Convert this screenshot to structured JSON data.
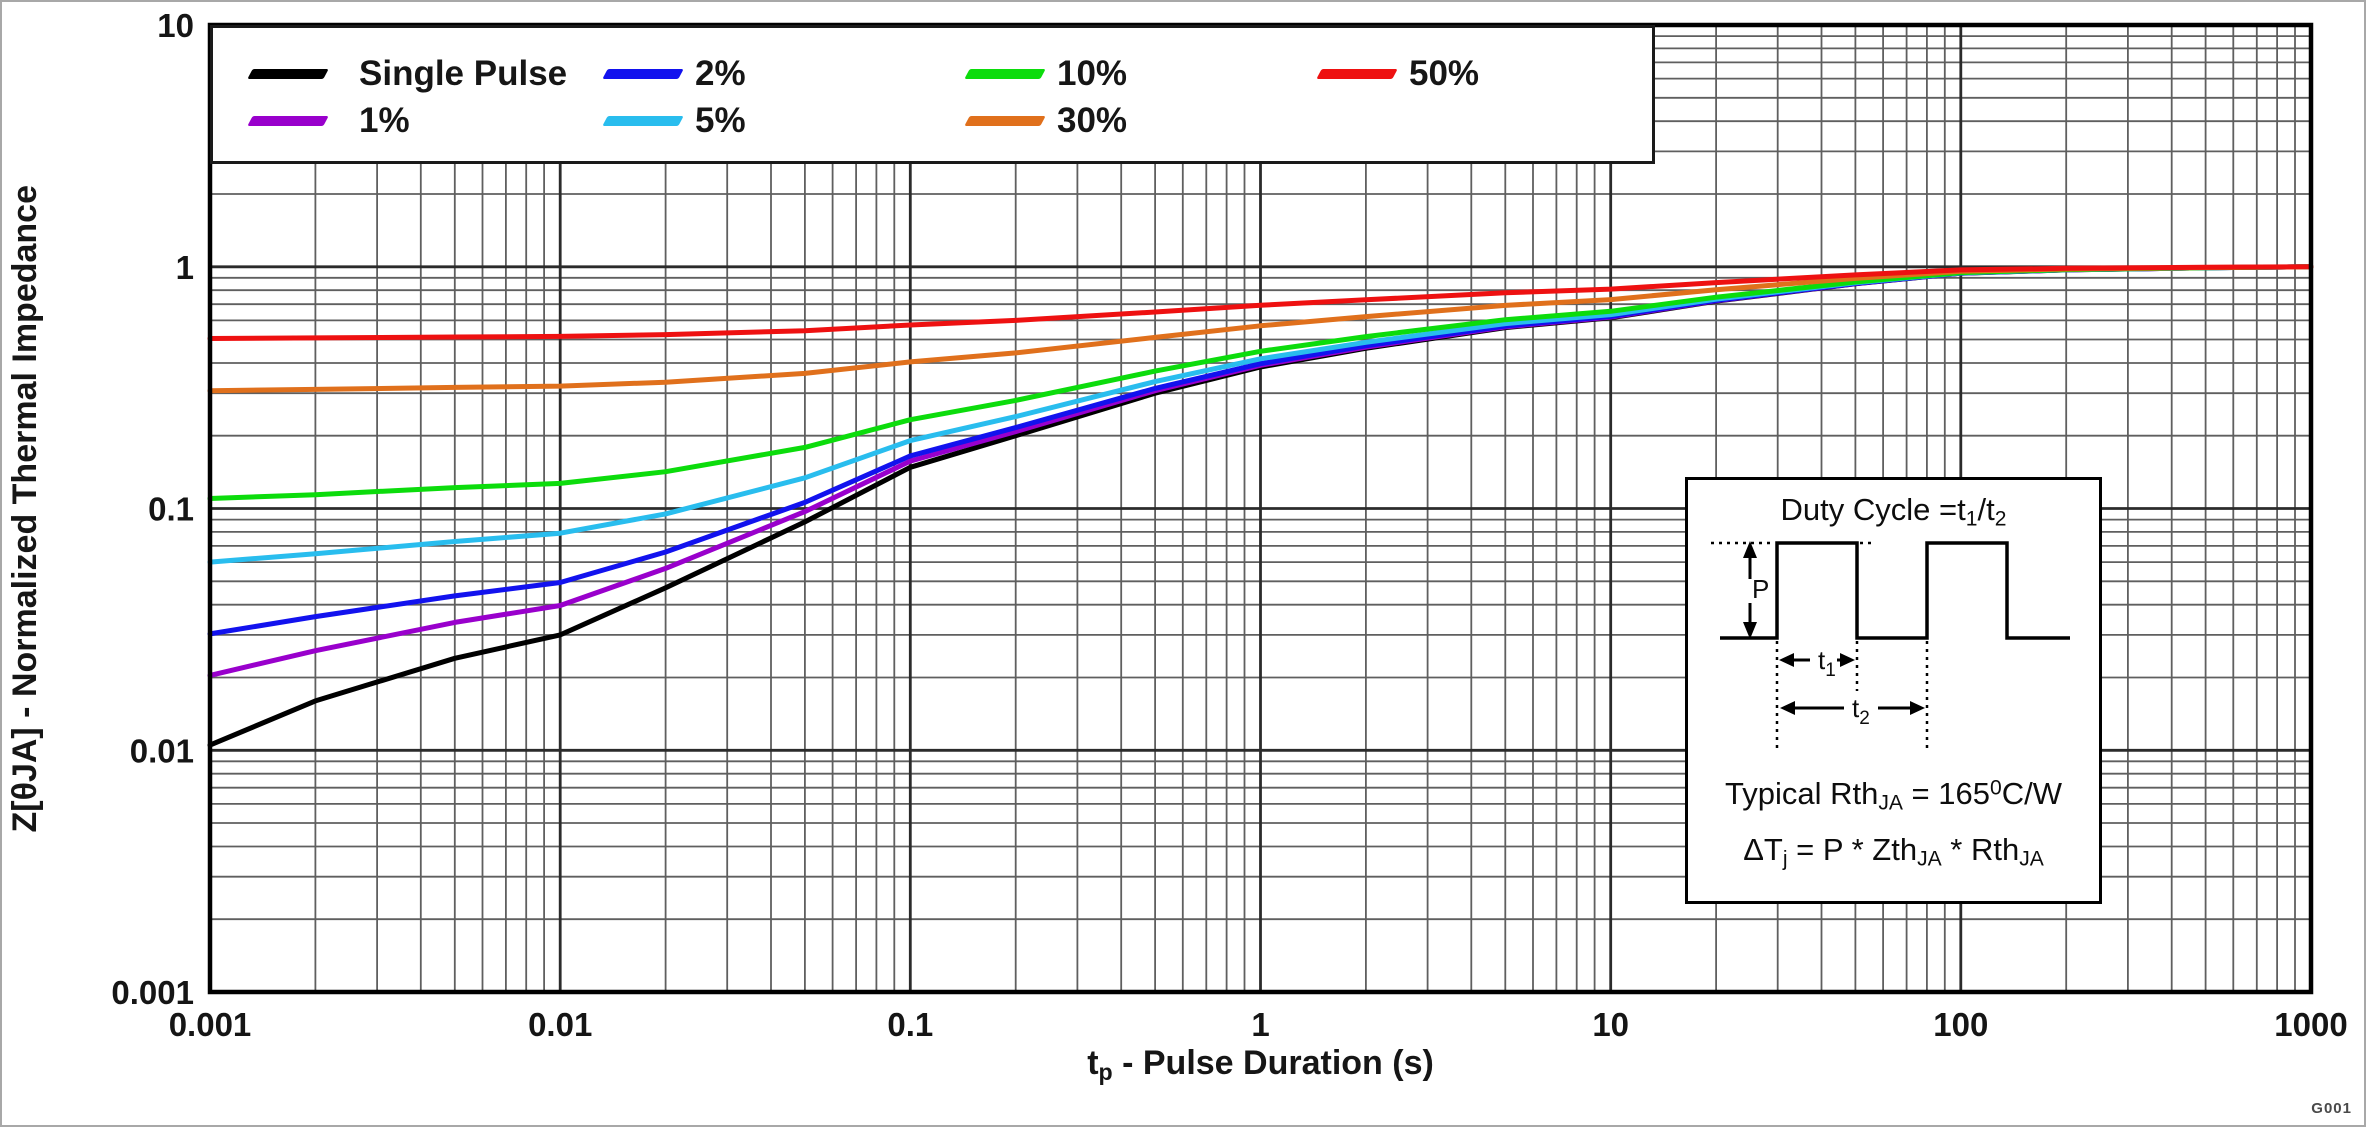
{
  "watermark": "G001",
  "axes": {
    "x_title": {
      "main": "t",
      "sub": "p",
      "rest": " - Pulse Duration (s)"
    },
    "y_title": "Z[θJA] - Normalized Thermal Impedance"
  },
  "chart_data": {
    "type": "line",
    "title": "",
    "xlabel": "tp - Pulse Duration (s)",
    "ylabel": "Z[θJA] - Normalized Thermal Impedance",
    "xscale": "log",
    "yscale": "log",
    "xlim": [
      0.001,
      1000
    ],
    "ylim": [
      0.001,
      10
    ],
    "x_ticks": [
      "0.001",
      "0.01",
      "0.1",
      "1",
      "10",
      "100",
      "1000"
    ],
    "y_ticks": [
      "10",
      "1",
      "0.1",
      "0.01",
      "0.001"
    ],
    "grid": "log major+minor, dark gray",
    "legend_position": "top-left",
    "x": [
      0.001,
      0.002,
      0.005,
      0.01,
      0.02,
      0.05,
      0.1,
      0.2,
      0.5,
      1,
      2,
      5,
      10,
      20,
      50,
      100,
      200,
      500,
      1000
    ],
    "series": [
      {
        "name": "Single Pulse",
        "color": "#000000",
        "values": [
          0.0105,
          0.016,
          0.024,
          0.03,
          0.047,
          0.088,
          0.148,
          0.2,
          0.3,
          0.385,
          0.46,
          0.56,
          0.615,
          0.72,
          0.85,
          0.94,
          0.97,
          0.99,
          1.0
        ]
      },
      {
        "name": "1%",
        "color": "#9900cc",
        "values": [
          0.0204,
          0.0258,
          0.0338,
          0.0397,
          0.0565,
          0.0971,
          0.157,
          0.208,
          0.307,
          0.391,
          0.465,
          0.564,
          0.619,
          0.723,
          0.852,
          0.941,
          0.97,
          0.99,
          1.0
        ]
      },
      {
        "name": "2%",
        "color": "#1212ee",
        "values": [
          0.0303,
          0.0357,
          0.0435,
          0.0494,
          0.0661,
          0.106,
          0.165,
          0.216,
          0.314,
          0.397,
          0.471,
          0.569,
          0.623,
          0.726,
          0.853,
          0.941,
          0.971,
          0.99,
          1.0
        ]
      },
      {
        "name": "5%",
        "color": "#29bdee",
        "values": [
          0.06,
          0.065,
          0.073,
          0.079,
          0.095,
          0.134,
          0.191,
          0.24,
          0.335,
          0.416,
          0.487,
          0.582,
          0.634,
          0.734,
          0.858,
          0.943,
          0.972,
          0.991,
          1.0
        ]
      },
      {
        "name": "10%",
        "color": "#0cdc0c",
        "values": [
          0.11,
          0.114,
          0.122,
          0.127,
          0.142,
          0.179,
          0.233,
          0.28,
          0.37,
          0.447,
          0.514,
          0.604,
          0.654,
          0.748,
          0.865,
          0.946,
          0.973,
          0.991,
          1.0
        ]
      },
      {
        "name": "30%",
        "color": "#e0701c",
        "values": [
          0.307,
          0.311,
          0.317,
          0.321,
          0.333,
          0.362,
          0.404,
          0.44,
          0.51,
          0.57,
          0.622,
          0.692,
          0.731,
          0.804,
          0.895,
          0.958,
          0.979,
          0.993,
          1.0
        ]
      },
      {
        "name": "50%",
        "color": "#ee1111",
        "values": [
          0.505,
          0.508,
          0.512,
          0.515,
          0.524,
          0.544,
          0.574,
          0.6,
          0.65,
          0.693,
          0.73,
          0.78,
          0.808,
          0.86,
          0.925,
          0.97,
          0.985,
          0.995,
          1.0
        ]
      }
    ]
  },
  "inset": {
    "title": {
      "a": "Duty Cycle =t",
      "sub_a": "1",
      "b": "/t",
      "sub_b": "2"
    },
    "wave": {
      "p": "P",
      "t1": "t",
      "t1_sub": "1",
      "t2": "t",
      "t2_sub": "2"
    },
    "rth_line": {
      "a": "Typical Rth",
      "sub_a": "JA",
      "b": " = 165",
      "sup": "0",
      "c": "C/W"
    },
    "dt_line": {
      "a": "ΔT",
      "sub_a": "j",
      "b": " = P * Zth",
      "sub_b": "JA",
      "c": " * Rth",
      "sub_c": "JA"
    }
  }
}
